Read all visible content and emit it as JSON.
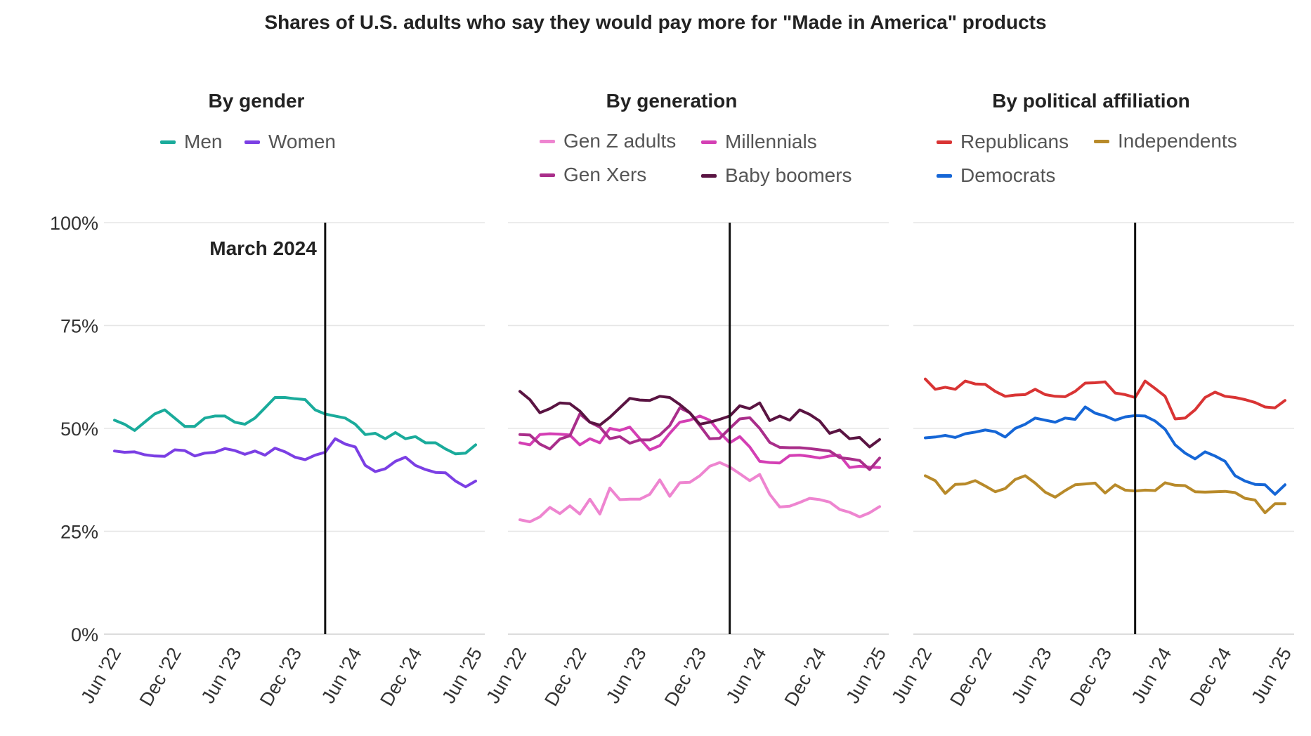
{
  "title": "Shares of U.S. adults who say they would pay more for \"Made in America\" products",
  "y_ticks": [
    "0%",
    "25%",
    "50%",
    "75%",
    "100%"
  ],
  "y_tick_values": [
    0,
    25,
    50,
    75,
    100
  ],
  "x_ticks": [
    "Jun '22",
    "Dec '22",
    "Jun '23",
    "Dec '23",
    "Jun '24",
    "Dec '24",
    "Jun '25"
  ],
  "x_tick_months": [
    "2022-06",
    "2022-12",
    "2023-06",
    "2023-12",
    "2024-06",
    "2024-12",
    "2025-06"
  ],
  "annotation": {
    "label": "March 2024",
    "month": "2024-03"
  },
  "chart_data": [
    {
      "type": "line",
      "title": "By gender",
      "ylim": [
        0,
        100
      ],
      "xlim": [
        "2022-06",
        "2025-06"
      ],
      "grid": true,
      "legend": "top",
      "x_start": "2022-06",
      "x_step": "half-month",
      "series": [
        {
          "name": "Men",
          "color": "#1aab9b",
          "values": [
            52,
            51,
            49.5,
            51.5,
            53.5,
            54.5,
            52.5,
            50.5,
            50.5,
            52.5,
            53,
            53,
            51.5,
            51,
            52.5,
            55,
            57.5,
            57.5,
            57.2,
            57,
            54.5,
            53.5,
            53,
            52.5,
            51,
            48.5,
            48.8,
            47.5,
            49,
            47.5,
            48,
            46.5,
            46.5,
            45,
            43.8,
            44,
            46
          ]
        },
        {
          "name": "Women",
          "color": "#7b3fe4",
          "values": [
            44.5,
            44.2,
            44.3,
            43.6,
            43.3,
            43.2,
            44.8,
            44.6,
            43.3,
            44,
            44.2,
            45.1,
            44.6,
            43.7,
            44.5,
            43.5,
            45.2,
            44.3,
            43,
            42.4,
            43.5,
            44.2,
            47.5,
            46.2,
            45.5,
            41,
            39.5,
            40.2,
            42,
            43,
            41,
            40,
            39.3,
            39.2,
            37.2,
            35.8,
            37.2
          ]
        }
      ]
    },
    {
      "type": "line",
      "title": "By generation",
      "ylim": [
        0,
        100
      ],
      "xlim": [
        "2022-06",
        "2025-06"
      ],
      "grid": true,
      "legend": "top",
      "x_start": "2022-06",
      "x_step": "half-month",
      "series": [
        {
          "name": "Gen Z adults",
          "color": "#ee85d0",
          "values": [
            27.8,
            27.3,
            28.5,
            30.8,
            29.3,
            31.2,
            29.2,
            32.8,
            29.2,
            35.5,
            32.7,
            32.8,
            32.8,
            34,
            37.5,
            33.5,
            36.8,
            36.9,
            38.5,
            40.8,
            41.7,
            40.6,
            39,
            37.3,
            38.8,
            34,
            30.9,
            31.1,
            32,
            33,
            32.7,
            32.1,
            30.3,
            29.6,
            28.5,
            29.5,
            31
          ]
        },
        {
          "name": "Millennials",
          "color": "#d43fb4",
          "values": [
            46.5,
            46,
            48.5,
            48.7,
            48.6,
            48.4,
            46,
            47.5,
            46.5,
            50,
            49.5,
            50.3,
            47.5,
            44.8,
            45.8,
            48.8,
            51.5,
            52,
            53,
            52,
            49,
            46.5,
            48,
            45.5,
            42,
            41.7,
            41.6,
            43.4,
            43.5,
            43.2,
            42.8,
            43.3,
            43.5,
            40.5,
            40.8,
            40.6,
            40.5
          ]
        },
        {
          "name": "Gen Xers",
          "color": "#a92e8a",
          "values": [
            48.5,
            48.4,
            46.2,
            45,
            47.4,
            48.2,
            53.5,
            51.5,
            50.3,
            47.5,
            48,
            46.4,
            47.2,
            47.2,
            48.4,
            50.7,
            55,
            53.8,
            50.7,
            47.5,
            47.6,
            50,
            52.3,
            52.6,
            50,
            46.6,
            45.4,
            45.3,
            45.3,
            45.1,
            44.8,
            44.5,
            42.9,
            42.6,
            42.2,
            40,
            42.8
          ]
        },
        {
          "name": "Baby boomers",
          "color": "#5a1442",
          "values": [
            59,
            57,
            53.8,
            54.8,
            56.2,
            56,
            54.2,
            51.5,
            50.8,
            52.7,
            55,
            57.3,
            56.9,
            56.8,
            57.8,
            57.5,
            55.8,
            53.8,
            51,
            51.5,
            52.2,
            53,
            55.5,
            54.8,
            56.2,
            51.9,
            53,
            52,
            54.5,
            53.4,
            51.8,
            48.8,
            49.6,
            47.5,
            47.8,
            45.5,
            47.3
          ]
        }
      ]
    },
    {
      "type": "line",
      "title": "By political affiliation",
      "ylim": [
        0,
        100
      ],
      "xlim": [
        "2022-06",
        "2025-06"
      ],
      "grid": true,
      "legend": "top",
      "x_start": "2022-06",
      "x_step": "half-month",
      "series": [
        {
          "name": "Republicans",
          "color": "#d93434",
          "values": [
            62,
            59.5,
            60,
            59.5,
            61.5,
            60.8,
            60.7,
            59,
            57.8,
            58.1,
            58.2,
            59.5,
            58.2,
            57.8,
            57.7,
            59,
            61,
            61.1,
            61.3,
            58.6,
            58.2,
            57.5,
            61.5,
            59.7,
            57.8,
            52.3,
            52.5,
            54.5,
            57.5,
            58.8,
            57.8,
            57.5,
            57,
            56.3,
            55.2,
            55,
            56.8
          ]
        },
        {
          "name": "Independents",
          "color": "#b88a2a",
          "values": [
            38.5,
            37.3,
            34.2,
            36.4,
            36.5,
            37.3,
            36,
            34.6,
            35.4,
            37.6,
            38.5,
            36.7,
            34.5,
            33.3,
            34.9,
            36.3,
            36.5,
            36.7,
            34.3,
            36.3,
            35,
            34.8,
            35,
            34.9,
            36.8,
            36.2,
            36.1,
            34.6,
            34.5,
            34.6,
            34.7,
            34.4,
            33,
            32.6,
            29.5,
            31.7,
            31.7
          ]
        },
        {
          "name": "Democrats",
          "color": "#1566d6",
          "values": [
            47.7,
            47.9,
            48.3,
            47.8,
            48.7,
            49.1,
            49.6,
            49.2,
            47.9,
            50,
            51,
            52.5,
            52,
            51.5,
            52.5,
            52.2,
            55.2,
            53.7,
            53,
            52,
            52.8,
            53.1,
            53,
            51.8,
            49.8,
            46,
            44,
            42.6,
            44.3,
            43.3,
            42,
            38.5,
            37.2,
            36.4,
            36.3,
            34,
            36.3
          ]
        }
      ]
    }
  ],
  "legend_columns": [
    [
      "Men",
      "Women"
    ],
    [
      "Gen Z adults",
      "Millennials",
      "Gen Xers",
      "Baby boomers"
    ],
    [
      "Republicans",
      "Independents",
      "Democrats"
    ]
  ]
}
